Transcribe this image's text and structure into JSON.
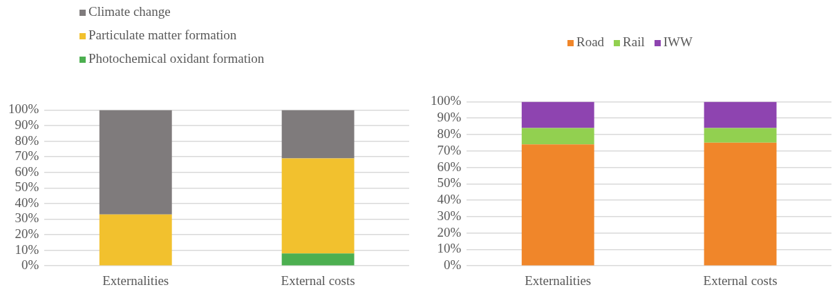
{
  "chart_data": [
    {
      "type": "bar",
      "stacked": true,
      "categories": [
        "Externalities",
        "External costs"
      ],
      "series": [
        {
          "name": "Photochemical oxidant formation",
          "color": "#4caf50",
          "values": [
            0,
            8
          ]
        },
        {
          "name": "Particulate matter formation",
          "color": "#f2c12e",
          "values": [
            33,
            61
          ]
        },
        {
          "name": "Climate change",
          "color": "#7f7b7c",
          "values": [
            67,
            31
          ]
        }
      ],
      "ylim": [
        0,
        100
      ],
      "yticks": [
        {
          "value": 0,
          "label": "0%"
        },
        {
          "value": 10,
          "label": "10%"
        },
        {
          "value": 20,
          "label": "20%"
        },
        {
          "value": 30,
          "label": "30%"
        },
        {
          "value": 40,
          "label": "40%"
        },
        {
          "value": 50,
          "label": "50%"
        },
        {
          "value": 60,
          "label": "60%"
        },
        {
          "value": 70,
          "label": "70%"
        },
        {
          "value": 80,
          "label": "80%"
        },
        {
          "value": 90,
          "label": "90%"
        },
        {
          "value": 100,
          "label": "100%"
        }
      ],
      "grid": "y",
      "legend": "top left"
    },
    {
      "type": "bar",
      "stacked": true,
      "categories": [
        "Externalities",
        "External costs"
      ],
      "series": [
        {
          "name": "Road",
          "color": "#f0862a",
          "values": [
            74,
            75
          ]
        },
        {
          "name": "Rail",
          "color": "#92d050",
          "values": [
            10,
            9
          ]
        },
        {
          "name": "IWW",
          "color": "#8e44b0",
          "values": [
            16,
            16
          ]
        }
      ],
      "ylim": [
        0,
        100
      ],
      "yticks": [
        {
          "value": 0,
          "label": "0%"
        },
        {
          "value": 10,
          "label": "10%"
        },
        {
          "value": 20,
          "label": "20%"
        },
        {
          "value": 30,
          "label": "30%"
        },
        {
          "value": 40,
          "label": "40%"
        },
        {
          "value": 50,
          "label": "50%"
        },
        {
          "value": 60,
          "label": "60%"
        },
        {
          "value": 70,
          "label": "70%"
        },
        {
          "value": 80,
          "label": "80%"
        },
        {
          "value": 90,
          "label": "90%"
        },
        {
          "value": 100,
          "label": "100%"
        }
      ],
      "grid": "y",
      "legend": "top"
    }
  ]
}
